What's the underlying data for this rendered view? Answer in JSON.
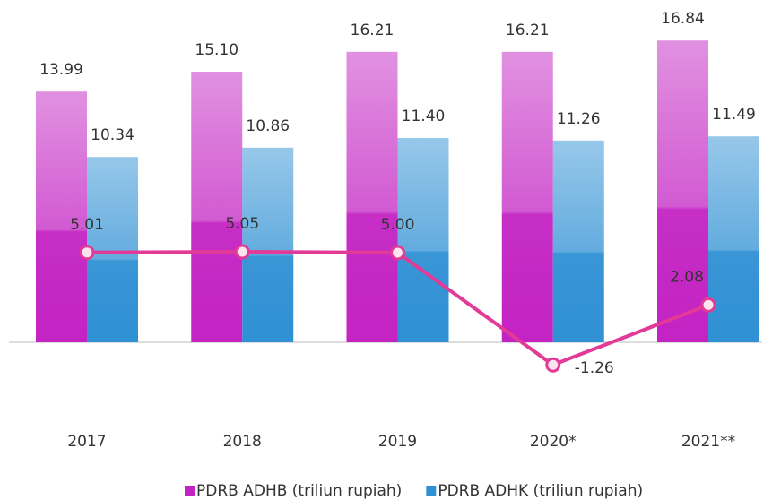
{
  "chart_data": {
    "type": "bar",
    "categories": [
      "2017",
      "2018",
      "2019",
      "2020*",
      "2021**"
    ],
    "ylim": [
      -3,
      19
    ],
    "series": [
      {
        "name": "PDRB ADHB (triliun rupiah)",
        "color": "#c323c3",
        "values": [
          13.99,
          15.1,
          16.21,
          16.21,
          16.84
        ],
        "value_labels": [
          "13.99",
          "15.10",
          "16.21",
          "16.21",
          "16.84"
        ]
      },
      {
        "name": "PDRB ADHK (triliun rupiah)",
        "color": "#2f90d4",
        "values": [
          10.34,
          10.86,
          11.4,
          11.26,
          11.49
        ],
        "value_labels": [
          "10.34",
          "10.86",
          "11.40",
          "11.26",
          "11.49"
        ]
      },
      {
        "type": "line",
        "color": "#e23a96",
        "values": [
          5.01,
          5.05,
          5.0,
          -1.26,
          2.08
        ],
        "value_labels": [
          "5.01",
          "5.05",
          "5.00",
          "-1.26",
          "2.08"
        ]
      }
    ]
  }
}
